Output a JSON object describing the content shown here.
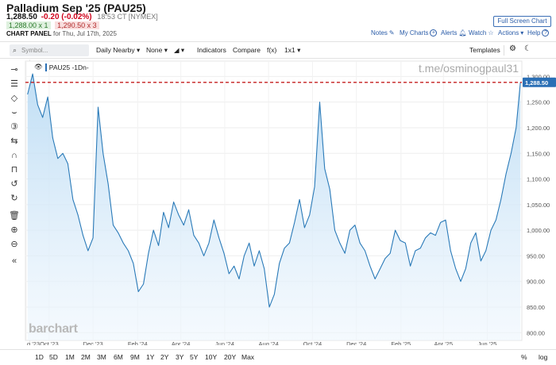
{
  "header": {
    "title": "Palladium Sep '25 (PAU25)",
    "last_price": "1,288.50",
    "change": "-0.20 (-0.02%)",
    "time_exchange": "18:53 CT [NYMEX]",
    "bid": "1,288.00 x 1",
    "ask": "1,290.50 x 3",
    "panel_label": "CHART PANEL",
    "panel_date": "for Thu, Jul 17th, 2025",
    "fullscreen_label": "Full Screen Chart",
    "links": {
      "notes": "Notes",
      "mycharts": "My Charts",
      "alerts": "Alerts",
      "watch": "Watch",
      "actions": "Actions",
      "help": "Help"
    }
  },
  "toolbar": {
    "symbol_placeholder": "Symbol...",
    "interval": "Daily Nearby",
    "study": "None",
    "indicators": "Indicators",
    "compare": "Compare",
    "fx": "f(x)",
    "layout": "1x1",
    "templates": "Templates"
  },
  "legend": {
    "label": "PAU25 -1Dn-"
  },
  "watermark": "t.me/osminogpaul31",
  "logo": "barchart",
  "range_buttons": [
    "1D",
    "5D",
    "1M",
    "2M",
    "3M",
    "6M",
    "9M",
    "1Y",
    "2Y",
    "3Y",
    "5Y",
    "10Y",
    "20Y",
    "Max"
  ],
  "scale_buttons": {
    "percent": "%",
    "log": "log"
  },
  "colors": {
    "line": "#2a7ab8",
    "fill": "#cde5f7",
    "last_line": "#c41f1f",
    "price_badge": "#2a6fb5"
  },
  "chart_data": {
    "type": "area",
    "series": [
      {
        "name": "PAU25 -1Dn-",
        "x": [
          "2023-09-01",
          "2023-09-08",
          "2023-09-15",
          "2023-09-22",
          "2023-09-29",
          "2023-10-06",
          "2023-10-13",
          "2023-10-20",
          "2023-10-27",
          "2023-11-03",
          "2023-11-10",
          "2023-11-17",
          "2023-11-24",
          "2023-12-01",
          "2023-12-08",
          "2023-12-15",
          "2023-12-22",
          "2023-12-29",
          "2024-01-05",
          "2024-01-12",
          "2024-01-19",
          "2024-01-26",
          "2024-02-02",
          "2024-02-09",
          "2024-02-16",
          "2024-02-23",
          "2024-03-01",
          "2024-03-08",
          "2024-03-15",
          "2024-03-22",
          "2024-03-29",
          "2024-04-05",
          "2024-04-12",
          "2024-04-19",
          "2024-04-26",
          "2024-05-03",
          "2024-05-10",
          "2024-05-17",
          "2024-05-24",
          "2024-05-31",
          "2024-06-07",
          "2024-06-14",
          "2024-06-21",
          "2024-06-28",
          "2024-07-05",
          "2024-07-12",
          "2024-07-19",
          "2024-07-26",
          "2024-08-02",
          "2024-08-09",
          "2024-08-16",
          "2024-08-23",
          "2024-08-30",
          "2024-09-06",
          "2024-09-13",
          "2024-09-20",
          "2024-09-27",
          "2024-10-04",
          "2024-10-11",
          "2024-10-18",
          "2024-10-25",
          "2024-11-01",
          "2024-11-08",
          "2024-11-15",
          "2024-11-22",
          "2024-11-29",
          "2024-12-06",
          "2024-12-13",
          "2024-12-20",
          "2024-12-27",
          "2025-01-03",
          "2025-01-10",
          "2025-01-17",
          "2025-01-24",
          "2025-01-31",
          "2025-02-07",
          "2025-02-14",
          "2025-02-21",
          "2025-02-28",
          "2025-03-07",
          "2025-03-14",
          "2025-03-21",
          "2025-03-28",
          "2025-04-04",
          "2025-04-11",
          "2025-04-18",
          "2025-04-25",
          "2025-05-02",
          "2025-05-09",
          "2025-05-16",
          "2025-05-23",
          "2025-05-30",
          "2025-06-06",
          "2025-06-13",
          "2025-06-20",
          "2025-06-27",
          "2025-07-04",
          "2025-07-11",
          "2025-07-17"
        ],
        "values": [
          1265,
          1305,
          1245,
          1220,
          1260,
          1180,
          1140,
          1150,
          1130,
          1060,
          1030,
          990,
          960,
          985,
          1240,
          1150,
          1090,
          1010,
          995,
          975,
          960,
          935,
          880,
          895,
          955,
          1000,
          970,
          1035,
          1005,
          1055,
          1030,
          1010,
          1040,
          990,
          975,
          950,
          975,
          1020,
          985,
          955,
          915,
          930,
          905,
          950,
          975,
          930,
          960,
          925,
          850,
          875,
          935,
          965,
          975,
          1015,
          1060,
          1005,
          1030,
          1085,
          1250,
          1120,
          1080,
          1000,
          975,
          955,
          1000,
          1010,
          975,
          960,
          930,
          905,
          925,
          945,
          955,
          1000,
          980,
          975,
          930,
          960,
          965,
          985,
          995,
          990,
          1015,
          1020,
          960,
          925,
          900,
          925,
          975,
          995,
          940,
          960,
          1000,
          1020,
          1060,
          1110,
          1150,
          1200,
          1288.5
        ]
      }
    ],
    "xlabel": "",
    "ylabel": "",
    "x_tick_labels": [
      "g '23",
      "Oct '23",
      "Dec '23",
      "Feb '24",
      "Apr '24",
      "Jun '24",
      "Aug '24",
      "Oct '24",
      "Dec '24",
      "Feb '25",
      "Apr '25",
      "Jun '25"
    ],
    "y_ticks": [
      800,
      850,
      900,
      950,
      1000,
      1050,
      1100,
      1150,
      1200,
      1250,
      1300
    ],
    "y_tick_labels": [
      "800.00",
      "850.00",
      "900.00",
      "950.00",
      "1,000.00",
      "1,050.00",
      "1,100.00",
      "1,150.00",
      "1,200.00",
      "1,250.00",
      "1,300.00"
    ],
    "ylim": [
      785,
      1330
    ],
    "last_value": 1288.5,
    "last_value_label": "1,288.50",
    "grid": true,
    "legend": "top-left"
  }
}
